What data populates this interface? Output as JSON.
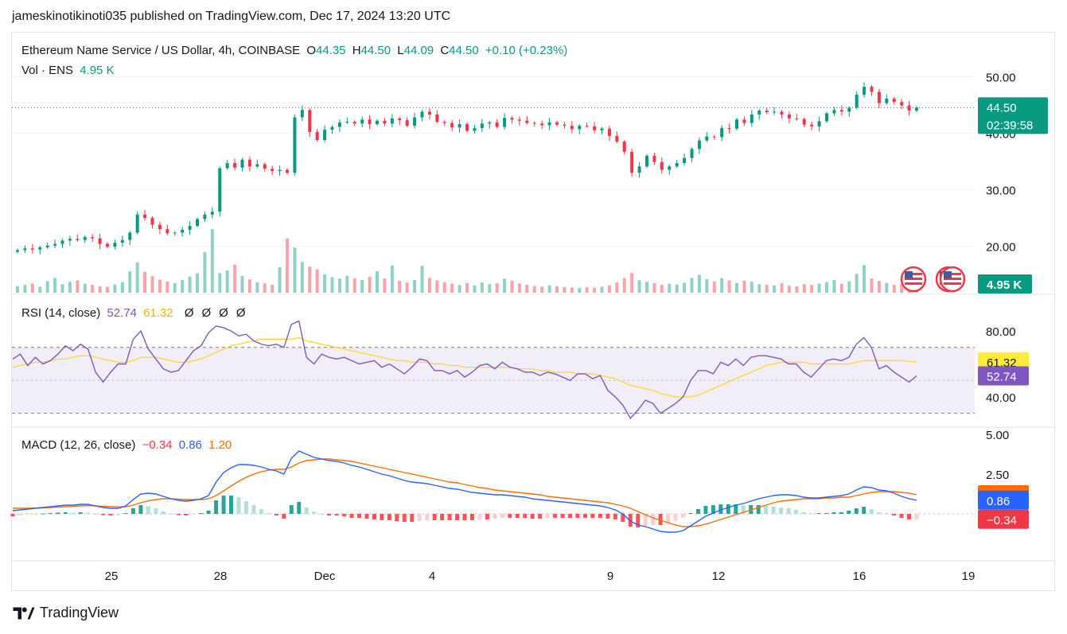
{
  "header": {
    "published_line": "jameskinotikinoti035 published on TradingView.com, Dec 17, 2024 13:20 UTC"
  },
  "main_legend": {
    "symbol": "Ethereum Name Service / US Dollar, 4h, COINBASE",
    "o_label": "O",
    "o": "44.35",
    "h_label": "H",
    "h": "44.50",
    "l_label": "L",
    "l": "44.09",
    "c_label": "C",
    "c": "44.50",
    "change": "+0.10 (+0.23%)"
  },
  "volume_legend": {
    "label": "Vol · ENS",
    "value": "4.95 K"
  },
  "rsi_legend": {
    "label": "RSI (14, close)",
    "rsi": "52.74",
    "ma": "61.32",
    "extras": [
      "Ø",
      "Ø",
      "Ø",
      "Ø"
    ]
  },
  "macd_legend": {
    "label": "MACD (12, 26, close)",
    "hist": "−0.34",
    "macd": "0.86",
    "signal": "1.20"
  },
  "price_axis": {
    "ticks": [
      "50.00",
      "40.00",
      "30.00",
      "20.00"
    ]
  },
  "price_tag": {
    "price": "44.50",
    "countdown": "02:39:58"
  },
  "volume_tag": "4.95 K",
  "rsi_axis": {
    "ticks": [
      "80.00",
      "40.00"
    ]
  },
  "rsi_tags": {
    "ma": "61.32",
    "rsi": "52.74"
  },
  "macd_axis": {
    "ticks": [
      "5.00",
      "2.50"
    ]
  },
  "macd_tags": {
    "signal": "1.20",
    "macd": "0.86",
    "hist": "−0.34"
  },
  "time_axis": {
    "labels": [
      "25",
      "28",
      "Dec",
      "4",
      "9",
      "12",
      "16",
      "19"
    ]
  },
  "footer": {
    "brand": "TradingView"
  },
  "colors": {
    "up": "#089981",
    "down": "#f23645",
    "rsi": "#7e57c2",
    "rsi_ma": "#fdd835",
    "macd": "#2962ff",
    "signal": "#ff6d00"
  },
  "chart_data": [
    {
      "type": "candlestick",
      "title": "Ethereum Name Service / US Dollar, 4h, COINBASE",
      "ylim": [
        15,
        53
      ],
      "y_ticks": [
        20,
        30,
        40,
        50
      ],
      "x_labels": [
        "25",
        "28",
        "Dec",
        "4",
        "9",
        "12",
        "16",
        "19"
      ],
      "close": [
        19.3,
        19.6,
        19.4,
        19.8,
        20.1,
        20.4,
        21.0,
        21.3,
        21.1,
        21.6,
        21.4,
        20.4,
        19.9,
        20.6,
        21.1,
        22.4,
        25.6,
        25.0,
        23.8,
        23.0,
        22.3,
        22.4,
        22.9,
        23.6,
        24.8,
        25.6,
        26.1,
        33.8,
        34.7,
        33.9,
        35.3,
        34.1,
        34.5,
        33.7,
        33.3,
        33.5,
        33.0,
        42.8,
        44.1,
        40.2,
        38.8,
        40.6,
        41.1,
        41.9,
        42.0,
        41.7,
        42.4,
        41.6,
        42.2,
        41.7,
        42.6,
        42.3,
        41.3,
        42.8,
        43.8,
        43.3,
        42.0,
        41.8,
        41.0,
        41.6,
        40.4,
        40.9,
        41.7,
        41.9,
        41.1,
        42.7,
        42.4,
        42.2,
        41.8,
        41.7,
        41.4,
        41.9,
        41.5,
        41.3,
        40.7,
        41.3,
        41.2,
        40.5,
        40.8,
        39.5,
        38.5,
        36.7,
        33.0,
        34.1,
        36.0,
        34.9,
        33.5,
        34.1,
        34.7,
        35.6,
        37.2,
        38.7,
        39.4,
        39.3,
        40.9,
        40.8,
        42.4,
        41.8,
        43.3,
        44.0,
        43.7,
        43.8,
        43.3,
        42.6,
        42.5,
        41.5,
        41.2,
        42.1,
        43.5,
        44.1,
        43.8,
        44.5,
        46.8,
        48.2,
        47.3,
        45.3,
        46.1,
        45.5,
        44.9,
        44.0,
        44.5
      ],
      "volume_K": [
        3.2,
        3.8,
        4.5,
        2.9,
        5.6,
        7.2,
        4.1,
        5.3,
        6.0,
        4.4,
        3.9,
        3.1,
        2.8,
        4.0,
        5.2,
        10.5,
        14.8,
        10.2,
        8.1,
        6.4,
        5.5,
        4.7,
        6.3,
        7.9,
        9.5,
        19.8,
        31.0,
        9.6,
        10.8,
        13.7,
        8.2,
        6.5,
        5.1,
        4.6,
        3.9,
        12.4,
        26.5,
        22.0,
        15.0,
        12.7,
        11.4,
        9.0,
        7.6,
        6.9,
        8.3,
        7.1,
        6.2,
        7.8,
        10.5,
        6.9,
        13.3,
        5.8,
        4.9,
        6.2,
        13.1,
        7.2,
        6.0,
        5.1,
        4.4,
        3.8,
        4.7,
        3.5,
        5.0,
        4.2,
        4.6,
        6.9,
        5.9,
        4.5,
        3.9,
        3.3,
        2.9,
        3.6,
        3.1,
        2.8,
        2.5,
        2.3,
        2.7,
        2.4,
        2.9,
        3.6,
        5.0,
        7.2,
        9.6,
        6.1,
        5.3,
        4.7,
        3.8,
        4.4,
        4.0,
        4.9,
        7.2,
        8.7,
        6.6,
        5.5,
        7.1,
        6.0,
        4.8,
        5.9,
        5.4,
        4.2,
        3.9,
        3.5,
        4.6,
        3.4,
        3.1,
        4.2,
        3.8,
        4.5,
        5.1,
        6.3,
        4.4,
        5.6,
        9.2,
        13.5,
        7.0,
        5.7,
        4.8,
        3.9,
        4.3,
        3.6,
        4.95
      ]
    },
    {
      "type": "line",
      "title": "RSI (14, close)",
      "ylim": [
        25,
        95
      ],
      "y_ticks": [
        80,
        40
      ],
      "bands": [
        70,
        30
      ],
      "series": [
        {
          "name": "RSI",
          "values": [
            63,
            66,
            59,
            64,
            60,
            62,
            66,
            71,
            68,
            72,
            69,
            55,
            49,
            55,
            60,
            60,
            75,
            80,
            69,
            63,
            57,
            55,
            56,
            62,
            68,
            71,
            79,
            83,
            82,
            80,
            77,
            78,
            74,
            72,
            71,
            72,
            70,
            84,
            86,
            64,
            60,
            66,
            64,
            63,
            64,
            62,
            60,
            61,
            62,
            58,
            60,
            57,
            54,
            58,
            63,
            62,
            56,
            56,
            54,
            56,
            52,
            55,
            59,
            60,
            57,
            61,
            58,
            57,
            55,
            55,
            53,
            55,
            54,
            52,
            50,
            54,
            54,
            51,
            53,
            44,
            40,
            35,
            27,
            32,
            38,
            36,
            30,
            33,
            36,
            40,
            50,
            56,
            56,
            54,
            61,
            59,
            63,
            59,
            64,
            65,
            65,
            64,
            63,
            60,
            60,
            55,
            52,
            57,
            62,
            63,
            62,
            64,
            72,
            76,
            70,
            57,
            59,
            55,
            52,
            49,
            52.74
          ]
        },
        {
          "name": "RSI-based MA",
          "values": [
            58,
            59,
            60,
            61,
            61,
            62,
            63,
            63,
            64,
            65,
            65,
            64,
            63,
            62,
            61,
            61,
            62,
            64,
            64,
            64,
            63,
            62,
            61,
            61,
            62,
            63,
            65,
            67,
            69,
            71,
            72,
            73,
            74,
            75,
            75,
            75,
            75,
            75,
            76,
            74,
            73,
            72,
            71,
            70,
            69,
            68,
            67,
            66,
            65,
            64,
            63,
            62,
            62,
            61,
            61,
            61,
            60,
            60,
            59,
            59,
            58,
            58,
            58,
            58,
            58,
            58,
            58,
            57,
            57,
            57,
            56,
            56,
            55,
            55,
            55,
            54,
            54,
            54,
            53,
            52,
            51,
            49,
            47,
            46,
            45,
            44,
            42,
            41,
            40,
            40,
            40,
            41,
            43,
            45,
            47,
            49,
            51,
            53,
            55,
            57,
            59,
            60,
            61,
            61,
            61,
            61,
            60,
            60,
            60,
            60,
            60,
            60,
            61,
            62,
            62,
            62,
            62,
            62,
            62,
            61.5,
            61.32
          ]
        }
      ]
    },
    {
      "type": "line",
      "title": "MACD (12, 26, close)",
      "ylim": [
        -2.7,
        5.3
      ],
      "y_ticks": [
        5.0,
        2.5
      ],
      "series": [
        {
          "name": "MACD",
          "values": [
            0.2,
            0.25,
            0.3,
            0.35,
            0.4,
            0.45,
            0.5,
            0.55,
            0.55,
            0.6,
            0.6,
            0.5,
            0.4,
            0.35,
            0.35,
            0.5,
            0.9,
            1.25,
            1.3,
            1.25,
            1.1,
            0.95,
            0.85,
            0.8,
            0.85,
            0.95,
            1.15,
            2.0,
            2.6,
            2.9,
            3.1,
            3.1,
            3.05,
            2.95,
            2.8,
            2.7,
            2.5,
            3.5,
            3.95,
            3.75,
            3.55,
            3.45,
            3.35,
            3.3,
            3.2,
            3.05,
            2.95,
            2.8,
            2.65,
            2.5,
            2.4,
            2.25,
            2.1,
            2.0,
            1.95,
            1.9,
            1.8,
            1.7,
            1.6,
            1.55,
            1.45,
            1.35,
            1.3,
            1.25,
            1.2,
            1.2,
            1.15,
            1.1,
            1.05,
            0.95,
            0.9,
            0.85,
            0.8,
            0.75,
            0.7,
            0.65,
            0.6,
            0.55,
            0.5,
            0.4,
            0.25,
            0.0,
            -0.45,
            -0.7,
            -0.8,
            -0.95,
            -1.1,
            -1.15,
            -1.15,
            -1.05,
            -0.75,
            -0.45,
            -0.15,
            0.05,
            0.25,
            0.4,
            0.55,
            0.65,
            0.8,
            0.95,
            1.05,
            1.15,
            1.2,
            1.2,
            1.15,
            1.05,
            1.0,
            1.0,
            1.05,
            1.1,
            1.15,
            1.25,
            1.5,
            1.7,
            1.65,
            1.5,
            1.45,
            1.3,
            1.1,
            0.95,
            0.86
          ]
        },
        {
          "name": "Signal",
          "values": [
            0.35,
            0.35,
            0.35,
            0.37,
            0.38,
            0.4,
            0.42,
            0.45,
            0.47,
            0.5,
            0.52,
            0.5,
            0.48,
            0.46,
            0.44,
            0.45,
            0.55,
            0.7,
            0.82,
            0.9,
            0.95,
            0.95,
            0.93,
            0.9,
            0.9,
            0.9,
            0.95,
            1.15,
            1.45,
            1.75,
            2.05,
            2.3,
            2.5,
            2.65,
            2.75,
            2.8,
            2.8,
            2.95,
            3.2,
            3.35,
            3.4,
            3.45,
            3.45,
            3.4,
            3.35,
            3.3,
            3.2,
            3.1,
            3.0,
            2.9,
            2.8,
            2.7,
            2.6,
            2.5,
            2.4,
            2.3,
            2.2,
            2.1,
            2.0,
            1.95,
            1.85,
            1.75,
            1.65,
            1.6,
            1.5,
            1.45,
            1.4,
            1.35,
            1.3,
            1.25,
            1.2,
            1.1,
            1.05,
            1.0,
            0.95,
            0.9,
            0.85,
            0.8,
            0.75,
            0.7,
            0.6,
            0.5,
            0.35,
            0.15,
            -0.05,
            -0.25,
            -0.4,
            -0.55,
            -0.7,
            -0.8,
            -0.8,
            -0.75,
            -0.65,
            -0.5,
            -0.35,
            -0.2,
            -0.05,
            0.1,
            0.25,
            0.4,
            0.55,
            0.7,
            0.8,
            0.85,
            0.9,
            0.95,
            0.95,
            0.95,
            1.0,
            1.0,
            1.05,
            1.05,
            1.15,
            1.25,
            1.35,
            1.4,
            1.4,
            1.4,
            1.35,
            1.3,
            1.2
          ]
        },
        {
          "name": "Histogram",
          "values": [
            -0.15,
            -0.1,
            -0.05,
            -0.02,
            0.02,
            0.05,
            0.08,
            0.1,
            0.08,
            0.1,
            0.08,
            0.0,
            -0.08,
            -0.11,
            -0.09,
            0.05,
            0.35,
            0.55,
            0.48,
            0.35,
            0.15,
            0.0,
            -0.08,
            -0.1,
            -0.05,
            0.05,
            0.2,
            0.85,
            1.15,
            1.15,
            1.05,
            0.8,
            0.55,
            0.3,
            0.05,
            -0.1,
            -0.3,
            0.55,
            0.75,
            0.4,
            0.15,
            0.0,
            -0.1,
            -0.1,
            -0.15,
            -0.25,
            -0.25,
            -0.3,
            -0.35,
            -0.4,
            -0.4,
            -0.45,
            -0.5,
            -0.5,
            -0.45,
            -0.4,
            -0.4,
            -0.4,
            -0.4,
            -0.4,
            -0.4,
            -0.4,
            -0.35,
            -0.35,
            -0.3,
            -0.25,
            -0.25,
            -0.25,
            -0.25,
            -0.3,
            -0.3,
            -0.25,
            -0.25,
            -0.25,
            -0.25,
            -0.25,
            -0.25,
            -0.25,
            -0.25,
            -0.3,
            -0.35,
            -0.5,
            -0.8,
            -0.85,
            -0.75,
            -0.7,
            -0.7,
            -0.6,
            -0.45,
            -0.25,
            0.05,
            0.3,
            0.5,
            0.55,
            0.6,
            0.6,
            0.6,
            0.55,
            0.55,
            0.55,
            0.5,
            0.45,
            0.4,
            0.35,
            0.25,
            0.1,
            0.05,
            0.05,
            0.05,
            0.1,
            0.1,
            0.2,
            0.35,
            0.45,
            0.3,
            0.1,
            0.05,
            -0.1,
            -0.25,
            -0.35,
            -0.34
          ]
        }
      ]
    }
  ]
}
